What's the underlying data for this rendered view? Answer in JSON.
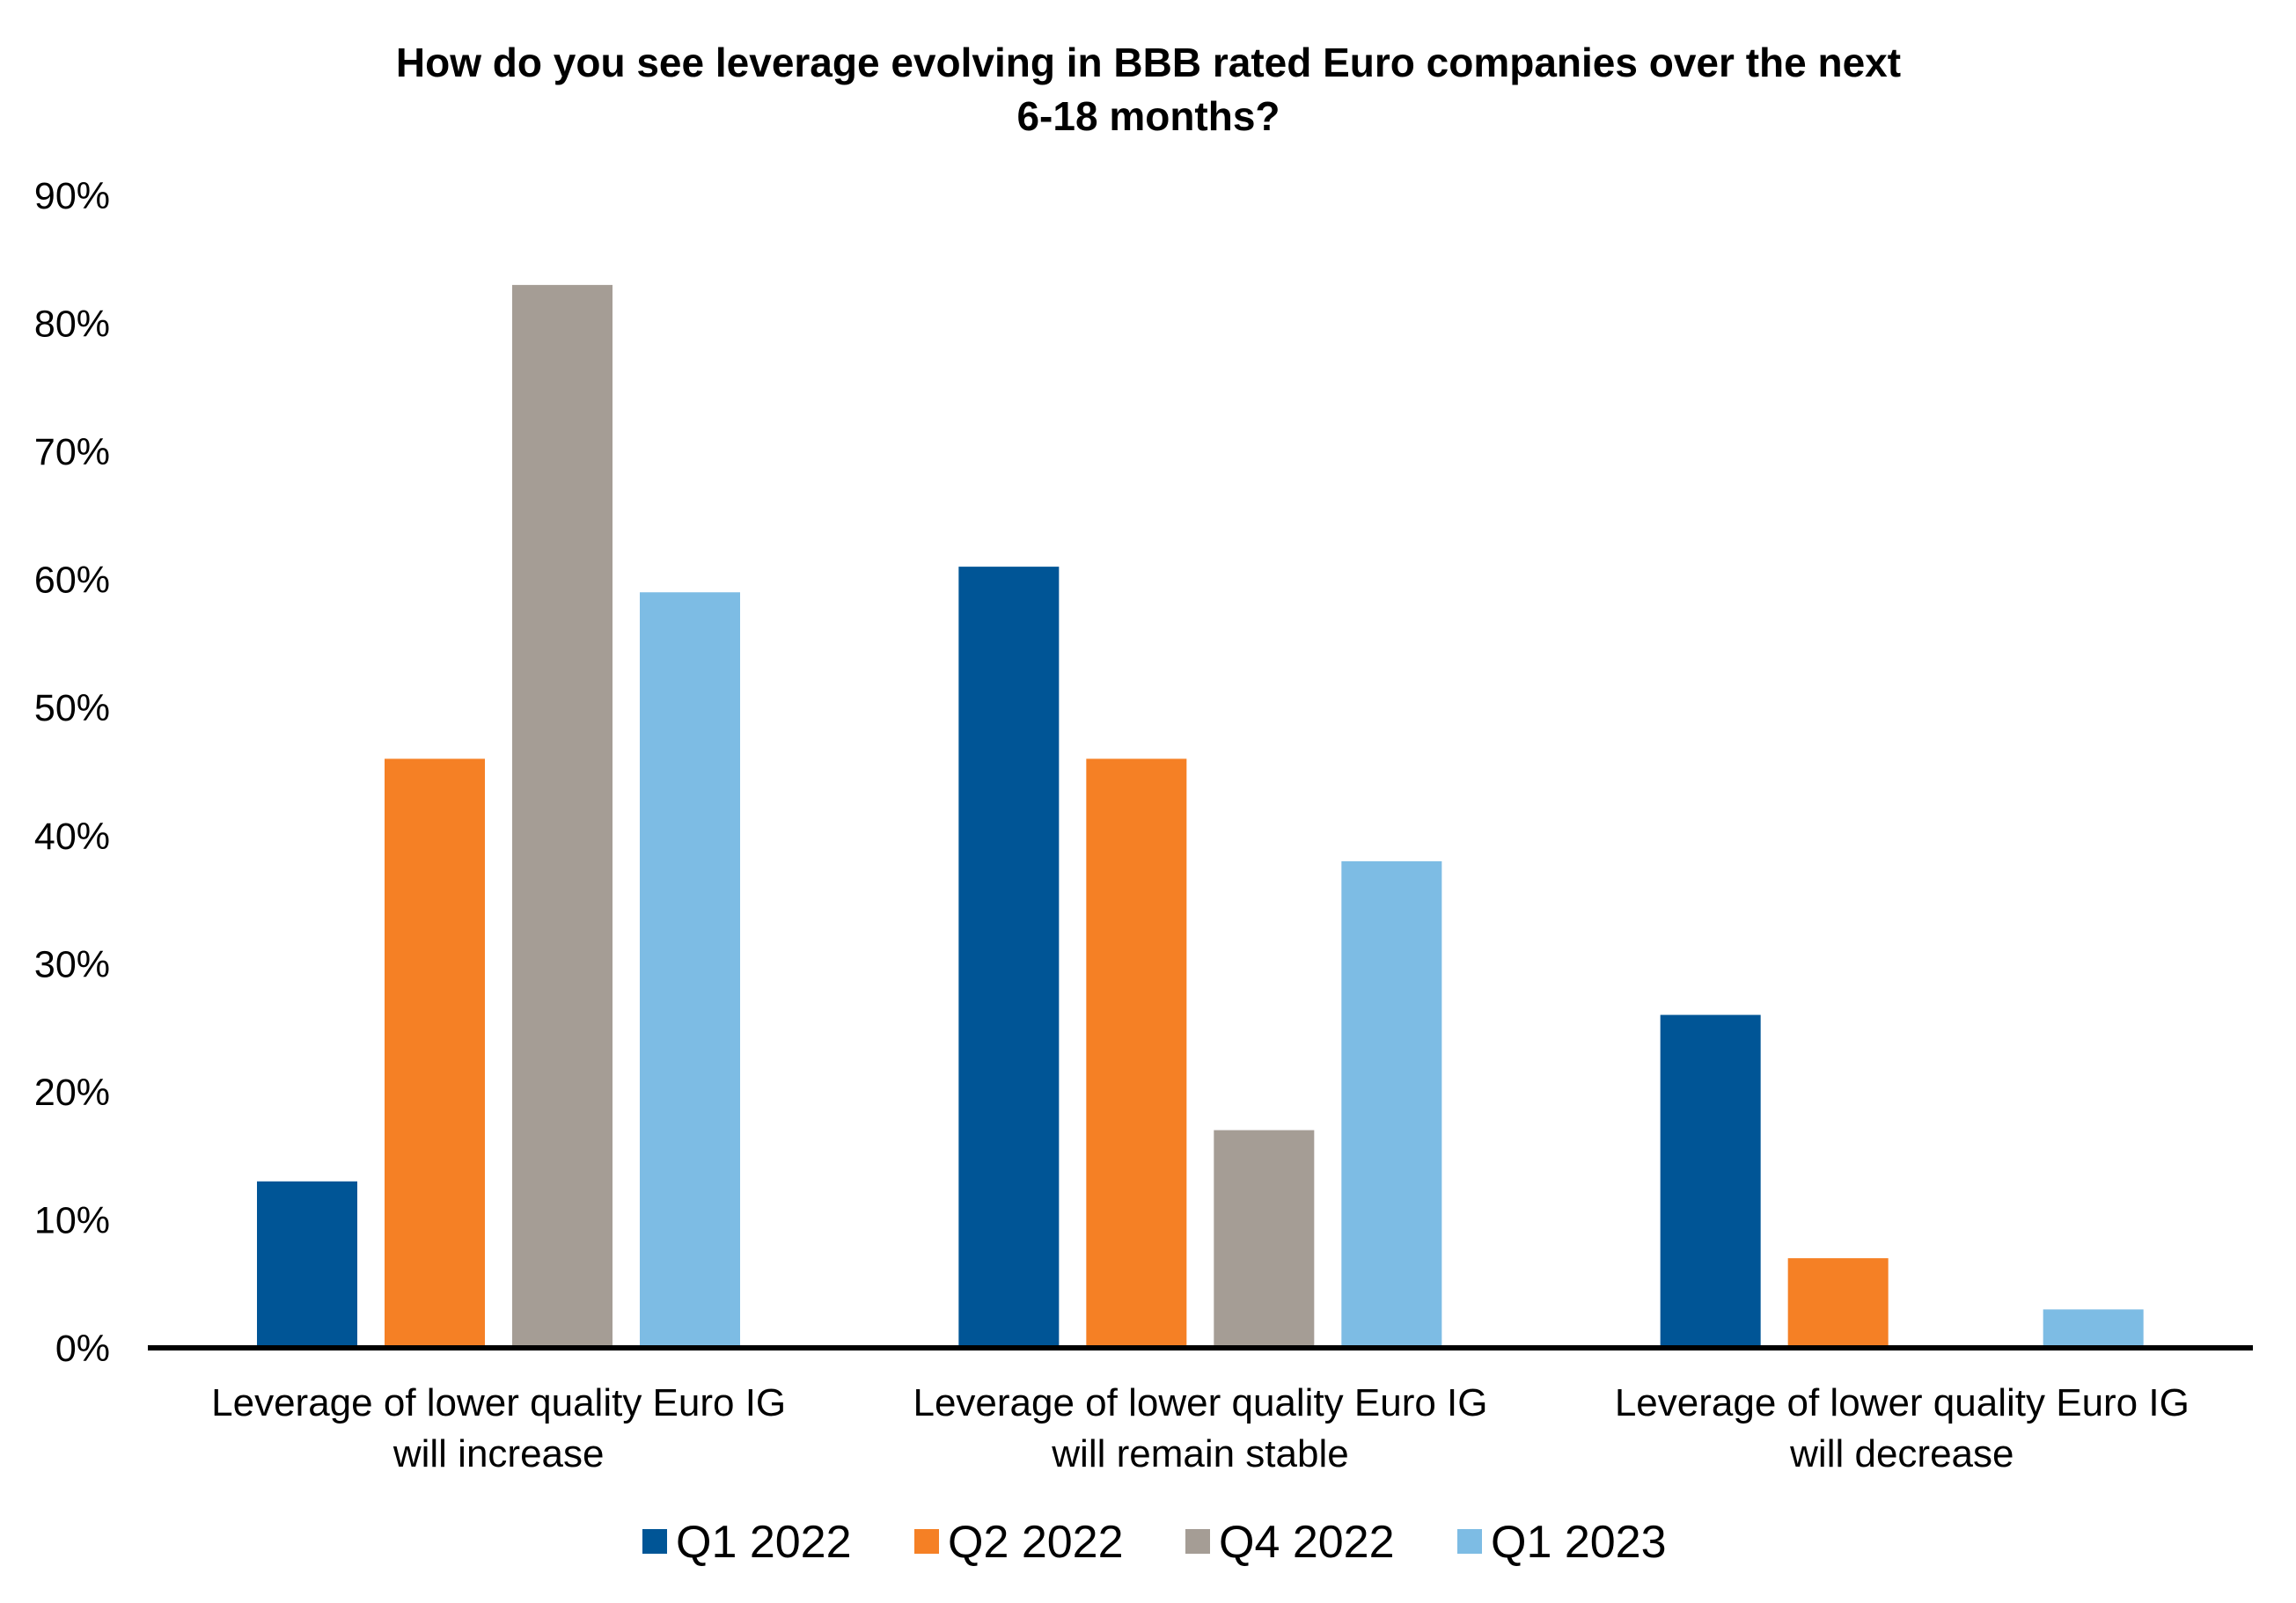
{
  "chart_data": {
    "type": "bar",
    "title_lines": [
      "How do you see leverage evolving in BBB rated Euro companies over the next",
      "6-18 months?"
    ],
    "categories": [
      [
        "Leverage of lower quality Euro IG",
        "will increase"
      ],
      [
        "Leverage of lower quality Euro IG",
        "will remain stable"
      ],
      [
        "Leverage of lower quality Euro IG",
        "will decrease"
      ]
    ],
    "series": [
      {
        "name": "Q1 2022",
        "color": "#005596",
        "values": [
          13,
          61,
          26
        ]
      },
      {
        "name": "Q2 2022",
        "color": "#F58025",
        "values": [
          46,
          46,
          7
        ]
      },
      {
        "name": "Q4 2022",
        "color": "#A59D95",
        "values": [
          83,
          17,
          0
        ]
      },
      {
        "name": "Q1 2023",
        "color": "#7DBCE4",
        "values": [
          59,
          38,
          3
        ]
      }
    ],
    "y_ticks": [
      "0%",
      "10%",
      "20%",
      "30%",
      "40%",
      "50%",
      "60%",
      "70%",
      "80%",
      "90%"
    ],
    "ylim": [
      0,
      90
    ],
    "grid": false,
    "legend_position": "bottom"
  }
}
